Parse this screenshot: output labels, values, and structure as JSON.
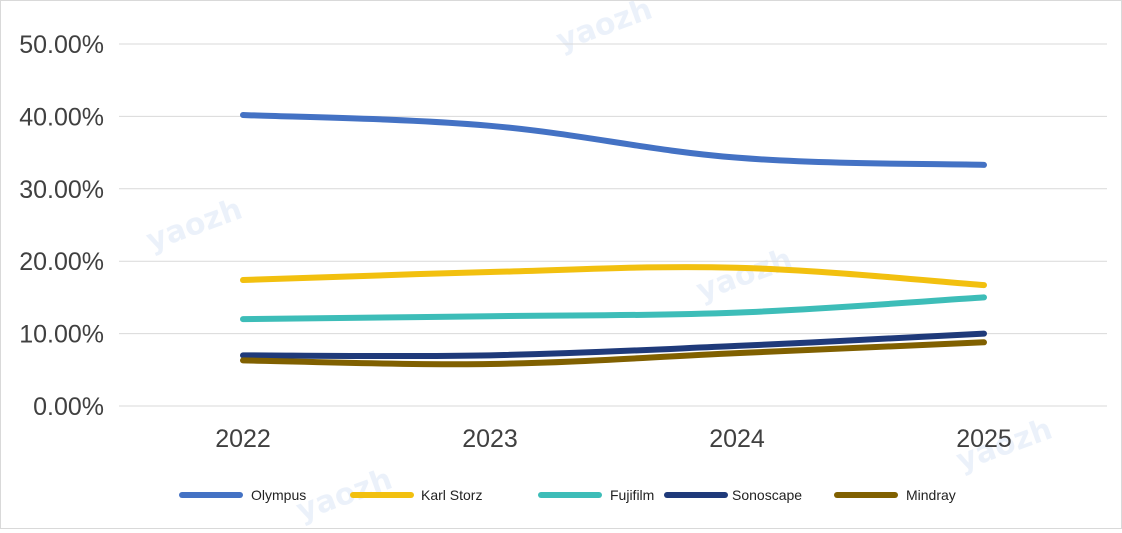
{
  "chart_data": {
    "type": "line",
    "title": "",
    "xlabel": "",
    "ylabel": "",
    "categories": [
      "2022",
      "2023",
      "2024",
      "2025"
    ],
    "ylim": [
      0,
      50
    ],
    "yticks": [
      0,
      10,
      20,
      30,
      40,
      50
    ],
    "ytick_labels": [
      "0.00%",
      "10.00%",
      "20.00%",
      "30.00%",
      "40.00%",
      "50.00%"
    ],
    "grid": true,
    "legend_position": "bottom",
    "series": [
      {
        "name": "Olympus",
        "color": "#4472c4",
        "values": [
          40.2,
          38.7,
          34.3,
          33.3
        ]
      },
      {
        "name": "Karl Storz",
        "color": "#f2c00f",
        "values": [
          17.4,
          18.5,
          19.1,
          16.7
        ]
      },
      {
        "name": "Fujifilm",
        "color": "#3dbdb8",
        "values": [
          12.0,
          12.4,
          12.9,
          15.0
        ]
      },
      {
        "name": "Sonoscape",
        "color": "#1f3a7a",
        "values": [
          7.0,
          7.0,
          8.3,
          10.0
        ]
      },
      {
        "name": "Mindray",
        "color": "#806000",
        "values": [
          6.3,
          5.8,
          7.3,
          8.8
        ]
      }
    ]
  }
}
